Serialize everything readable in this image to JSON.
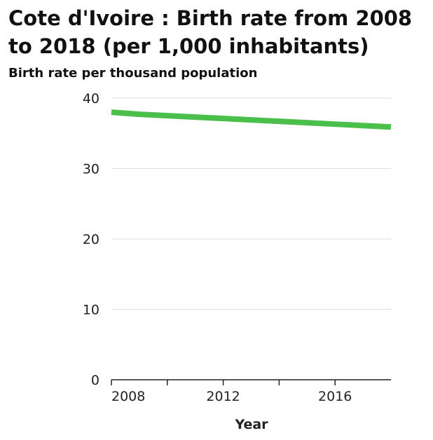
{
  "chart_data": {
    "type": "line",
    "title": "Cote d'Ivoire : Birth rate from 2008 to 2018 (per 1,000 inhabitants)",
    "xlabel": "Year",
    "ylabel": "Birth rate per thousand population",
    "x": [
      2008,
      2009,
      2010,
      2011,
      2012,
      2013,
      2014,
      2015,
      2016,
      2017,
      2018
    ],
    "series": [
      {
        "values": [
          38.0,
          37.7,
          37.5,
          37.3,
          37.1,
          36.9,
          36.7,
          36.5,
          36.3,
          36.1,
          35.9
        ]
      }
    ],
    "xlim": [
      2008,
      2018
    ],
    "ylim": [
      0,
      40
    ],
    "yticks": [
      0,
      10,
      20,
      30,
      40
    ],
    "xticks": [
      2008,
      2012,
      2016
    ],
    "xminor_ticks": [
      2010,
      2014
    ],
    "grid": "horizontal",
    "legend": "none",
    "colors": {
      "line": "#4bbf4b",
      "grid": "#dddddd",
      "axis": "#222222"
    }
  }
}
